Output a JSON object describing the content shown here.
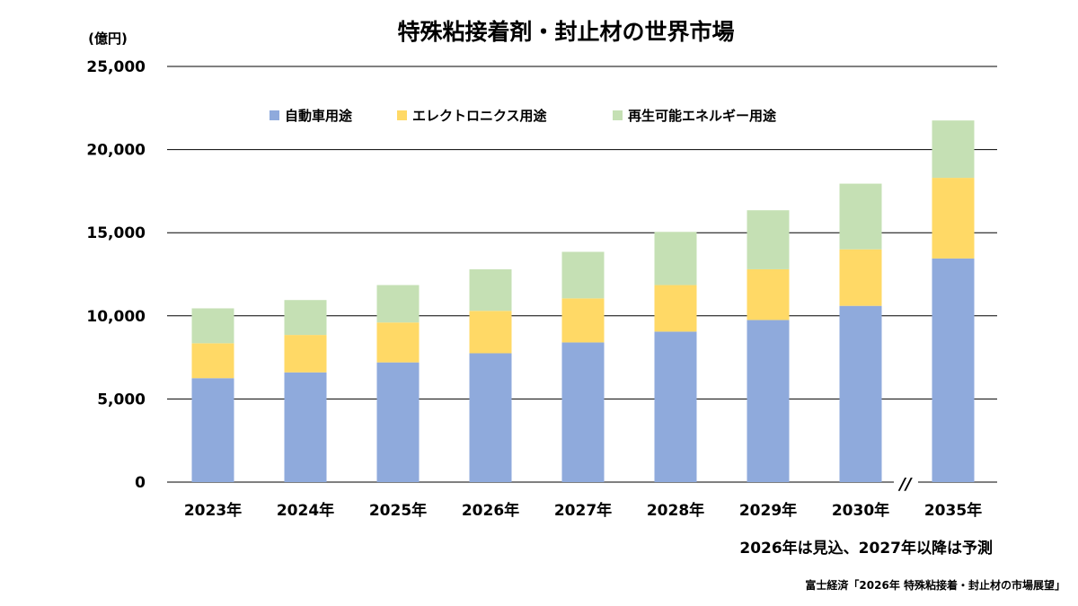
{
  "chart_data": {
    "type": "bar",
    "stacked": true,
    "title": "特殊粘接着剤・封止材の世界市場",
    "ylabel": "(億円)",
    "xlabel": "",
    "ylim": [
      0,
      25000
    ],
    "yticks": [
      0,
      5000,
      10000,
      15000,
      20000,
      25000
    ],
    "ytick_labels": [
      "0",
      "5,000",
      "10,000",
      "15,000",
      "20,000",
      "25,000"
    ],
    "grid": true,
    "legend_position": "top",
    "axis_break_label": "//",
    "categories": [
      "2023年",
      "2024年",
      "2025年",
      "2026年",
      "2027年",
      "2028年",
      "2029年",
      "2030年",
      "2035年"
    ],
    "series": [
      {
        "name": "自動車用途",
        "color": "#8faadc",
        "values": [
          6250,
          6600,
          7200,
          7750,
          8400,
          9050,
          9750,
          10600,
          13450
        ]
      },
      {
        "name": "エレクトロニクス用途",
        "color": "#ffd966",
        "values": [
          2100,
          2250,
          2400,
          2550,
          2650,
          2800,
          3050,
          3400,
          4850
        ]
      },
      {
        "name": "再生可能エネルギー用途",
        "color": "#c5e0b4",
        "values": [
          2100,
          2100,
          2250,
          2500,
          2800,
          3200,
          3550,
          3950,
          3450
        ]
      }
    ],
    "note": "2026年は見込、2027年以降は予測",
    "source": "富士経済「2026年 特殊粘接着・封止材の市場展望」"
  }
}
